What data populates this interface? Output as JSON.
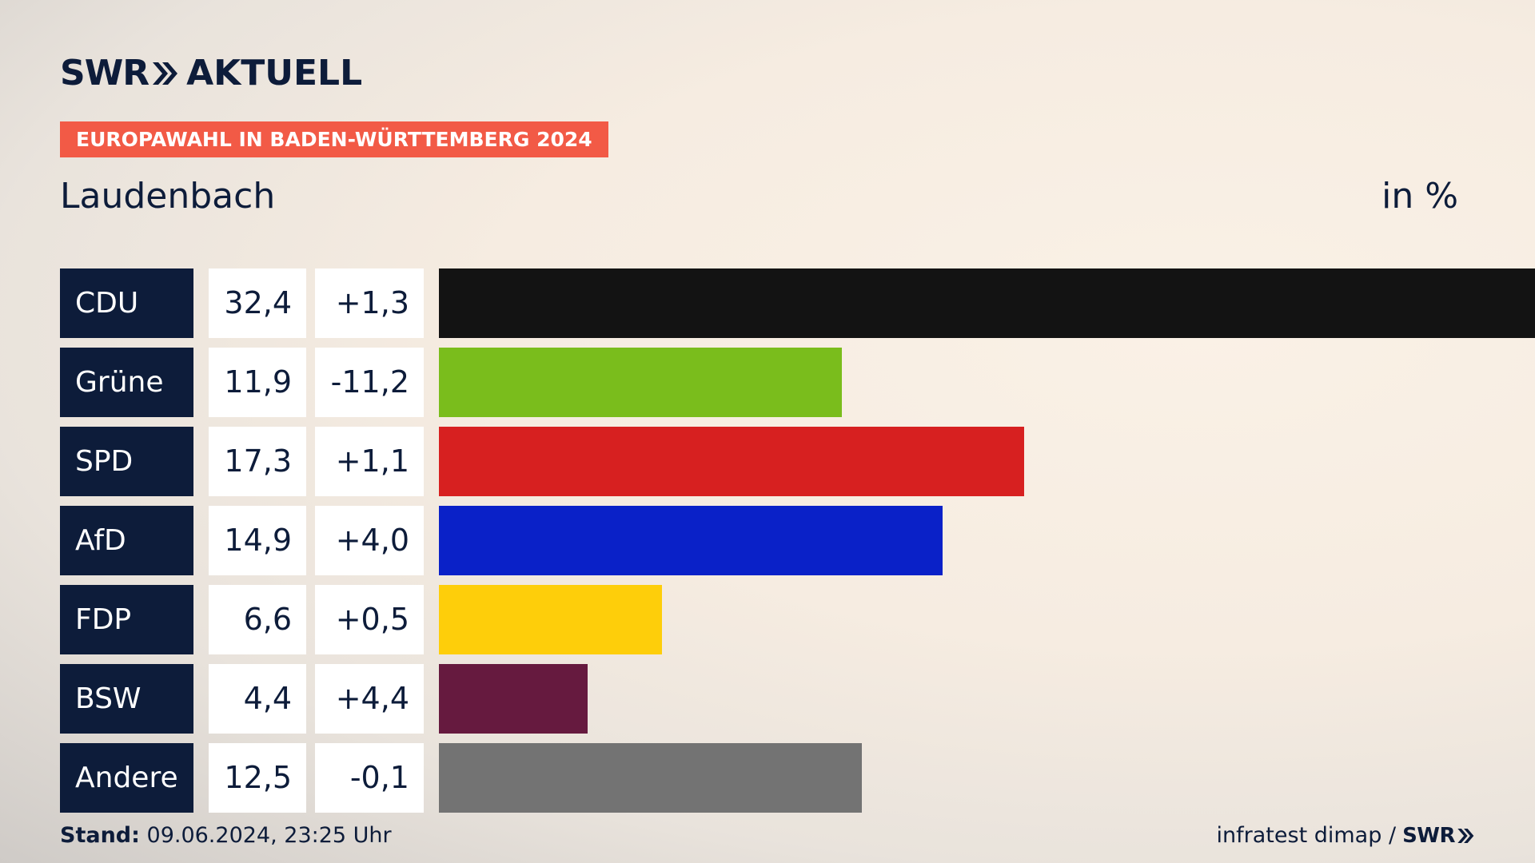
{
  "brand": {
    "logo_left": "SWR",
    "logo_right": "AKTUELL"
  },
  "banner": "EUROPAWAHL IN BADEN-WÜRTTEMBERG 2024",
  "place": "Laudenbach",
  "unit": "in %",
  "footer": {
    "stand_label": "Stand:",
    "stand_value": "09.06.2024, 23:25 Uhr",
    "source": "infratest dimap /",
    "source_logo": "SWR"
  },
  "chart_data": {
    "type": "bar",
    "orientation": "horizontal",
    "categories": [
      "CDU",
      "Grüne",
      "SPD",
      "AfD",
      "FDP",
      "BSW",
      "Andere"
    ],
    "values": [
      32.4,
      11.9,
      17.3,
      14.9,
      6.6,
      4.4,
      12.5
    ],
    "value_labels": [
      "32,4",
      "11,9",
      "17,3",
      "14,9",
      "6,6",
      "4,4",
      "12,5"
    ],
    "changes": [
      "+1,3",
      "-11,2",
      "+1,1",
      "+4,0",
      "+0,5",
      "+4,4",
      "-0,1"
    ],
    "colors": [
      "#131313",
      "#7abd1c",
      "#d72020",
      "#0a21c8",
      "#fece0a",
      "#661a3f",
      "#737373"
    ],
    "xlim": [
      0,
      32.4
    ]
  }
}
